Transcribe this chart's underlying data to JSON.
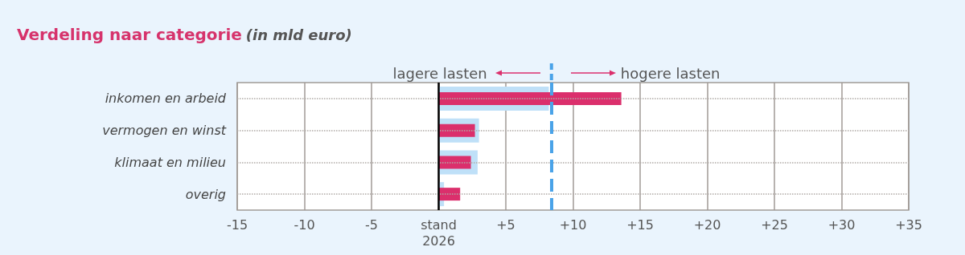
{
  "chart_data": {
    "type": "bar",
    "orientation": "horizontal",
    "title": "Verdeling naar categorie",
    "subtitle": "(in mld euro)",
    "categories": [
      "inkomen en arbeid",
      "vermogen en winst",
      "klimaat en milieu",
      "overig"
    ],
    "series": [
      {
        "color": "#bfe0f8",
        "values": [
          8.2,
          3.0,
          2.9,
          0.4
        ]
      },
      {
        "color": "#db2f6c",
        "values": [
          13.6,
          2.7,
          2.4,
          1.6
        ]
      }
    ],
    "xlim": [
      -15,
      35
    ],
    "xticks": [
      -15,
      -10,
      -5,
      {
        "value": 0,
        "label": "stand\n2026"
      },
      {
        "value": 5,
        "label": "+5"
      },
      {
        "value": 10,
        "label": "+10"
      },
      {
        "value": 15,
        "label": "+15"
      },
      {
        "value": 20,
        "label": "+20"
      },
      {
        "value": 25,
        "label": "+25"
      },
      {
        "value": 30,
        "label": "+30"
      },
      {
        "value": 35,
        "label": "+35"
      }
    ],
    "ref_lines": [
      {
        "axis": "x",
        "value": 8.4,
        "color": "#4aa3e8",
        "line_style": "dashed"
      }
    ],
    "annotations": [
      "lagere lasten",
      "hogere lasten"
    ],
    "grid": true
  }
}
